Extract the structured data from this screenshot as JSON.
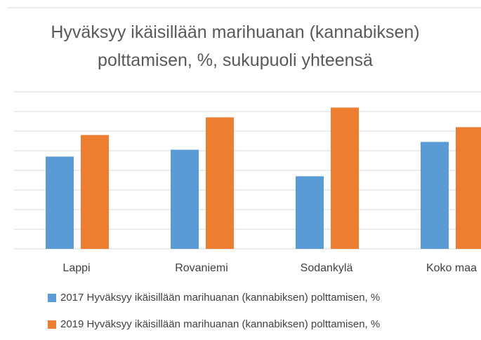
{
  "chart_data": {
    "type": "bar",
    "title": "Hyväksyy ikäisillään marihuanan (kannabiksen) polttamisen, %, sukupuoli yhteensä",
    "categories": [
      "Lappi",
      "Rovaniemi",
      "Sodankylä",
      "Koko maa"
    ],
    "series": [
      {
        "name": "2017 Hyväksyy ikäisillään marihuanan (kannabiksen) polttamisen, %",
        "color": "#5b9bd5",
        "values": [
          9.4,
          10.1,
          7.4,
          10.9
        ]
      },
      {
        "name": "2019 Hyväksyy ikäisillään marihuanan (kannabiksen) polttamisen, %",
        "color": "#ed7d31",
        "values": [
          11.6,
          13.4,
          14.4,
          12.4
        ]
      }
    ],
    "ylim": [
      0,
      16
    ],
    "yticks": [
      0,
      2,
      4,
      6,
      8,
      10,
      12,
      14,
      16
    ],
    "grid": true,
    "legend": "bottom"
  }
}
